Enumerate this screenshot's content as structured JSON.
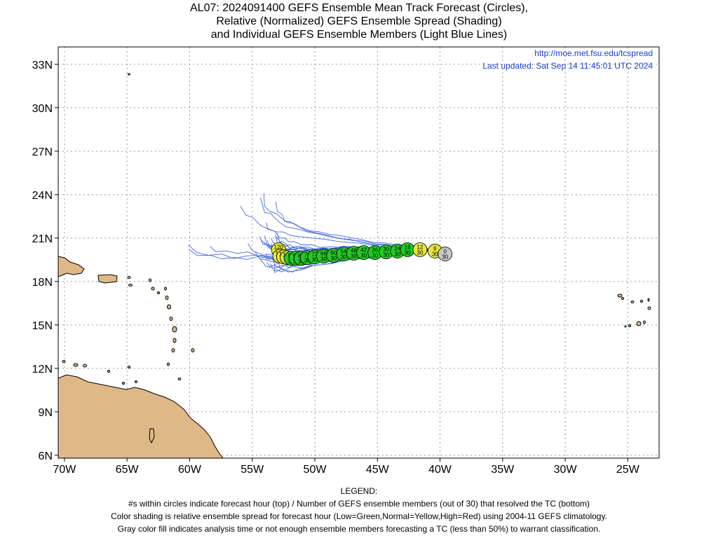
{
  "title": {
    "line1": "AL07: 2024091400 GEFS Ensemble Mean Track Forecast (Circles),",
    "line2": "Relative (Normalized) GEFS Ensemble Spread (Shading)",
    "line3": "and Individual GEFS Ensemble Members (Light Blue Lines)"
  },
  "header": {
    "url": "http://moe.met.fsu.edu/tcspread",
    "updated": "Last updated: Sat Sep 14 11:45:01 UTC 2024"
  },
  "axes": {
    "lon_min": -70.5,
    "lon_max": -22.5,
    "lat_min": 5.8,
    "lat_max": 34.2,
    "x_ticks": [
      {
        "lon": -70,
        "label": "70W"
      },
      {
        "lon": -65,
        "label": "65W"
      },
      {
        "lon": -60,
        "label": "60W"
      },
      {
        "lon": -55,
        "label": "55W"
      },
      {
        "lon": -50,
        "label": "50W"
      },
      {
        "lon": -45,
        "label": "45W"
      },
      {
        "lon": -40,
        "label": "40W"
      },
      {
        "lon": -35,
        "label": "35W"
      },
      {
        "lon": -30,
        "label": "30W"
      },
      {
        "lon": -25,
        "label": "25W"
      }
    ],
    "y_ticks": [
      {
        "lat": 6,
        "label": "6N"
      },
      {
        "lat": 9,
        "label": "9N"
      },
      {
        "lat": 12,
        "label": "12N"
      },
      {
        "lat": 15,
        "label": "15N"
      },
      {
        "lat": 18,
        "label": "18N"
      },
      {
        "lat": 21,
        "label": "21N"
      },
      {
        "lat": 24,
        "label": "24N"
      },
      {
        "lat": 27,
        "label": "27N"
      },
      {
        "lat": 30,
        "label": "30N"
      },
      {
        "lat": 33,
        "label": "33N"
      }
    ],
    "grid": true
  },
  "colors": {
    "land": "#deb887",
    "coast": "#000000",
    "member_line": "#4169e1",
    "header_text": "#1a3ccc",
    "low_spread": "#22cc22",
    "normal_spread": "#e6e63c",
    "high_spread": "#ee2222",
    "analysis": "#c8c8c8"
  },
  "forecast_points": [
    {
      "hour": "0",
      "members": "30",
      "lon": -39.6,
      "lat": 19.9,
      "category": "analysis"
    },
    {
      "hour": "6",
      "members": "30",
      "lon": -40.4,
      "lat": 20.1,
      "category": "normal"
    },
    {
      "hour": "12",
      "members": "30",
      "lon": -41.6,
      "lat": 20.2,
      "category": "normal"
    },
    {
      "hour": "18",
      "members": "30",
      "lon": -42.6,
      "lat": 20.2,
      "category": "low"
    },
    {
      "hour": "24",
      "members": "30",
      "lon": -43.4,
      "lat": 20.1,
      "category": "low"
    },
    {
      "hour": "30",
      "members": "30",
      "lon": -44.3,
      "lat": 20.05,
      "category": "low"
    },
    {
      "hour": "36",
      "members": "30",
      "lon": -45.2,
      "lat": 20.0,
      "category": "low"
    },
    {
      "hour": "42",
      "members": "30",
      "lon": -46.1,
      "lat": 20.0,
      "category": "low"
    },
    {
      "hour": "48",
      "members": "30",
      "lon": -46.9,
      "lat": 19.95,
      "category": "low"
    },
    {
      "hour": "54",
      "members": "30",
      "lon": -47.7,
      "lat": 19.9,
      "category": "low"
    },
    {
      "hour": "60",
      "members": "30",
      "lon": -48.5,
      "lat": 19.8,
      "category": "low"
    },
    {
      "hour": "66",
      "members": "30",
      "lon": -49.3,
      "lat": 19.75,
      "category": "low"
    },
    {
      "hour": "72",
      "members": "30",
      "lon": -50.0,
      "lat": 19.7,
      "category": "low"
    },
    {
      "hour": "78",
      "members": "30",
      "lon": -50.6,
      "lat": 19.65,
      "category": "low"
    },
    {
      "hour": "84",
      "members": "30",
      "lon": -51.1,
      "lat": 19.6,
      "category": "low"
    },
    {
      "hour": "90",
      "members": "30",
      "lon": -51.5,
      "lat": 19.6,
      "category": "low"
    },
    {
      "hour": "96",
      "members": "30",
      "lon": -51.9,
      "lat": 19.6,
      "category": "low"
    },
    {
      "hour": "102",
      "members": "30",
      "lon": -52.2,
      "lat": 19.65,
      "category": "normal"
    },
    {
      "hour": "108",
      "members": "29",
      "lon": -52.5,
      "lat": 19.7,
      "category": "normal"
    },
    {
      "hour": "114",
      "members": "29",
      "lon": -52.8,
      "lat": 19.75,
      "category": "normal"
    },
    {
      "hour": "120",
      "members": "29",
      "lon": -52.9,
      "lat": 20.2,
      "category": "normal"
    }
  ],
  "legend": {
    "heading": "LEGEND:",
    "line1": "#s within circles indicate forecast hour (top) / Number of GEFS ensemble members (out of 30) that resolved the TC (bottom)",
    "line2": "Color shading is relative ensemble spread for forecast hour (Low=Green,Normal=Yellow,High=Red) using 2004-11 GEFS climatology.",
    "line3": "Gray color fill indicates analysis time or not enough ensemble members forecasting a TC (less than 50%) to warrant classification."
  }
}
